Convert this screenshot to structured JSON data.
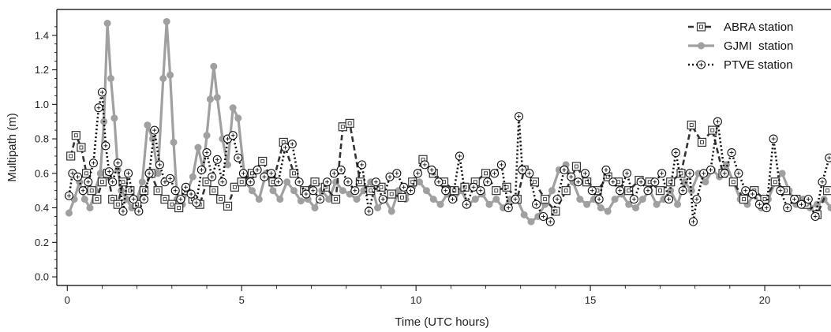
{
  "chart_data": {
    "type": "line",
    "xlabel": "Time (UTC hours)",
    "ylabel": "Multipath (m)",
    "xlim": [
      -0.3,
      21.9
    ],
    "ylim": [
      -0.05,
      1.55
    ],
    "xticks": [
      0,
      5,
      10,
      15,
      20
    ],
    "yticks": [
      0.0,
      0.2,
      0.4,
      0.6,
      0.8,
      1.0,
      1.2,
      1.4
    ],
    "xtick_labels": [
      "0",
      "5",
      "10",
      "15",
      "20"
    ],
    "ytick_labels": [
      "0.0",
      "0.2",
      "0.4",
      "0.6",
      "0.8",
      "1.0",
      "1.2",
      "1.4"
    ],
    "grid": false,
    "legend_position": "top-right",
    "series": [
      {
        "name": "ABRA station",
        "style": "dashed-square",
        "color": "#333333",
        "x": [
          0.1,
          0.25,
          0.4,
          0.55,
          0.7,
          0.85,
          1.0,
          1.15,
          1.3,
          1.45,
          1.6,
          1.8,
          2.0,
          2.2,
          2.4,
          2.6,
          2.8,
          3.0,
          3.2,
          3.4,
          3.6,
          3.8,
          4.0,
          4.2,
          4.4,
          4.6,
          4.8,
          5.0,
          5.3,
          5.6,
          5.9,
          6.2,
          6.5,
          6.8,
          7.1,
          7.4,
          7.7,
          7.9,
          8.1,
          8.4,
          8.7,
          9.0,
          9.3,
          9.6,
          9.9,
          10.2,
          10.5,
          10.8,
          11.1,
          11.4,
          11.7,
          12.0,
          12.3,
          12.6,
          12.9,
          13.1,
          13.4,
          13.7,
          14.0,
          14.3,
          14.6,
          14.9,
          15.2,
          15.5,
          15.8,
          16.1,
          16.4,
          16.7,
          17.0,
          17.3,
          17.6,
          17.9,
          18.2,
          18.5,
          18.8,
          19.1,
          19.4,
          19.7,
          20.0,
          20.3,
          20.6,
          20.9,
          21.2,
          21.5,
          21.8
        ],
        "y": [
          0.7,
          0.82,
          0.75,
          0.6,
          0.5,
          0.45,
          0.55,
          0.6,
          0.45,
          0.42,
          0.55,
          0.5,
          0.42,
          0.5,
          0.6,
          0.5,
          0.45,
          0.42,
          0.4,
          0.5,
          0.45,
          0.42,
          0.55,
          0.5,
          0.45,
          0.41,
          0.52,
          0.55,
          0.6,
          0.67,
          0.55,
          0.78,
          0.6,
          0.5,
          0.55,
          0.52,
          0.45,
          0.87,
          0.89,
          0.55,
          0.5,
          0.52,
          0.48,
          0.46,
          0.55,
          0.68,
          0.6,
          0.55,
          0.5,
          0.52,
          0.55,
          0.6,
          0.5,
          0.52,
          0.45,
          0.62,
          0.55,
          0.45,
          0.38,
          0.5,
          0.64,
          0.55,
          0.5,
          0.58,
          0.55,
          0.5,
          0.56,
          0.55,
          0.5,
          0.55,
          0.6,
          0.88,
          0.78,
          0.85,
          0.6,
          0.55,
          0.45,
          0.5,
          0.45,
          0.55,
          0.5,
          0.45,
          0.42,
          0.36,
          0.5
        ]
      },
      {
        "name": "GJMI  station",
        "style": "solid-circle",
        "color": "#a0a0a0",
        "x": [
          0.05,
          0.2,
          0.35,
          0.5,
          0.65,
          0.8,
          0.95,
          1.05,
          1.15,
          1.25,
          1.35,
          1.45,
          1.55,
          1.7,
          1.85,
          2.0,
          2.15,
          2.3,
          2.45,
          2.6,
          2.75,
          2.85,
          2.95,
          3.05,
          3.15,
          3.3,
          3.45,
          3.6,
          3.75,
          3.9,
          4.0,
          4.1,
          4.2,
          4.3,
          4.45,
          4.6,
          4.75,
          4.9,
          5.1,
          5.3,
          5.5,
          5.7,
          5.9,
          6.1,
          6.3,
          6.5,
          6.7,
          6.9,
          7.1,
          7.3,
          7.5,
          7.7,
          7.9,
          8.1,
          8.3,
          8.5,
          8.7,
          8.9,
          9.1,
          9.3,
          9.5,
          9.7,
          9.9,
          10.1,
          10.3,
          10.5,
          10.7,
          10.9,
          11.1,
          11.3,
          11.5,
          11.7,
          11.9,
          12.1,
          12.3,
          12.5,
          12.7,
          12.9,
          13.1,
          13.3,
          13.5,
          13.7,
          13.9,
          14.1,
          14.3,
          14.5,
          14.7,
          14.9,
          15.1,
          15.3,
          15.5,
          15.7,
          15.9,
          16.1,
          16.3,
          16.5,
          16.7,
          16.9,
          17.1,
          17.3,
          17.5,
          17.7,
          17.9,
          18.1,
          18.3,
          18.5,
          18.7,
          18.9,
          19.1,
          19.3,
          19.5,
          19.7,
          19.9,
          20.1,
          20.3,
          20.5,
          20.7,
          20.9,
          21.1,
          21.3,
          21.5,
          21.7,
          21.9
        ],
        "y": [
          0.37,
          0.45,
          0.55,
          0.45,
          0.4,
          0.5,
          0.6,
          0.9,
          1.47,
          1.15,
          0.92,
          0.62,
          0.5,
          0.45,
          0.4,
          0.45,
          0.55,
          0.88,
          0.8,
          0.6,
          1.15,
          1.48,
          1.17,
          0.78,
          0.45,
          0.42,
          0.5,
          0.58,
          0.75,
          0.62,
          0.82,
          1.03,
          1.22,
          1.04,
          0.8,
          0.65,
          0.98,
          0.92,
          0.55,
          0.5,
          0.45,
          0.6,
          0.5,
          0.45,
          0.55,
          0.5,
          0.44,
          0.45,
          0.4,
          0.5,
          0.45,
          0.55,
          0.5,
          0.48,
          0.45,
          0.5,
          0.55,
          0.4,
          0.45,
          0.38,
          0.5,
          0.45,
          0.52,
          0.55,
          0.5,
          0.45,
          0.42,
          0.48,
          0.45,
          0.5,
          0.42,
          0.45,
          0.48,
          0.42,
          0.45,
          0.4,
          0.45,
          0.45,
          0.36,
          0.32,
          0.35,
          0.42,
          0.5,
          0.62,
          0.65,
          0.55,
          0.45,
          0.42,
          0.45,
          0.4,
          0.38,
          0.45,
          0.48,
          0.42,
          0.4,
          0.45,
          0.5,
          0.42,
          0.45,
          0.5,
          0.42,
          0.55,
          0.5,
          0.6,
          0.55,
          0.62,
          0.58,
          0.65,
          0.55,
          0.45,
          0.42,
          0.48,
          0.4,
          0.45,
          0.55,
          0.6,
          0.5,
          0.42,
          0.45,
          0.4,
          0.42,
          0.45,
          0.4
        ]
      },
      {
        "name": "PTVE station",
        "style": "dotted-circle-plus",
        "color": "#111111",
        "x": [
          0.05,
          0.15,
          0.3,
          0.45,
          0.6,
          0.75,
          0.9,
          1.0,
          1.1,
          1.2,
          1.3,
          1.45,
          1.6,
          1.75,
          1.9,
          2.05,
          2.2,
          2.35,
          2.5,
          2.65,
          2.8,
          2.95,
          3.1,
          3.25,
          3.4,
          3.55,
          3.7,
          3.85,
          4.0,
          4.15,
          4.3,
          4.45,
          4.6,
          4.75,
          4.9,
          5.05,
          5.25,
          5.45,
          5.65,
          5.85,
          6.05,
          6.25,
          6.45,
          6.65,
          6.85,
          7.05,
          7.25,
          7.45,
          7.65,
          7.85,
          8.05,
          8.25,
          8.45,
          8.65,
          8.85,
          9.05,
          9.25,
          9.45,
          9.65,
          9.85,
          10.05,
          10.25,
          10.45,
          10.65,
          10.85,
          11.05,
          11.25,
          11.45,
          11.65,
          11.85,
          12.05,
          12.25,
          12.45,
          12.65,
          12.85,
          12.95,
          13.05,
          13.25,
          13.45,
          13.65,
          13.85,
          14.05,
          14.25,
          14.45,
          14.65,
          14.85,
          15.05,
          15.25,
          15.45,
          15.65,
          15.85,
          16.05,
          16.25,
          16.45,
          16.65,
          16.85,
          17.05,
          17.25,
          17.45,
          17.65,
          17.85,
          17.95,
          18.05,
          18.25,
          18.45,
          18.65,
          18.85,
          19.05,
          19.25,
          19.45,
          19.65,
          19.85,
          20.05,
          20.25,
          20.45,
          20.65,
          20.85,
          21.05,
          21.25,
          21.45,
          21.65,
          21.85
        ],
        "y": [
          0.47,
          0.6,
          0.58,
          0.5,
          0.55,
          0.66,
          0.98,
          1.07,
          0.76,
          0.61,
          0.55,
          0.66,
          0.38,
          0.6,
          0.45,
          0.38,
          0.45,
          0.6,
          0.85,
          0.65,
          0.55,
          0.57,
          0.5,
          0.45,
          0.52,
          0.48,
          0.43,
          0.62,
          0.72,
          0.58,
          0.68,
          0.55,
          0.8,
          0.82,
          0.69,
          0.6,
          0.55,
          0.62,
          0.58,
          0.6,
          0.55,
          0.75,
          0.77,
          0.55,
          0.48,
          0.5,
          0.45,
          0.55,
          0.6,
          0.62,
          0.55,
          0.5,
          0.65,
          0.38,
          0.55,
          0.45,
          0.58,
          0.6,
          0.52,
          0.5,
          0.6,
          0.65,
          0.62,
          0.55,
          0.5,
          0.45,
          0.7,
          0.42,
          0.52,
          0.5,
          0.55,
          0.6,
          0.65,
          0.4,
          0.45,
          0.93,
          0.62,
          0.6,
          0.42,
          0.35,
          0.32,
          0.45,
          0.62,
          0.58,
          0.55,
          0.6,
          0.5,
          0.45,
          0.62,
          0.55,
          0.5,
          0.6,
          0.45,
          0.55,
          0.5,
          0.55,
          0.6,
          0.45,
          0.72,
          0.5,
          0.6,
          0.32,
          0.45,
          0.6,
          0.62,
          0.9,
          0.6,
          0.72,
          0.6,
          0.5,
          0.48,
          0.42,
          0.4,
          0.8,
          0.5,
          0.4,
          0.45,
          0.42,
          0.45,
          0.35,
          0.55,
          0.69
        ]
      }
    ]
  }
}
